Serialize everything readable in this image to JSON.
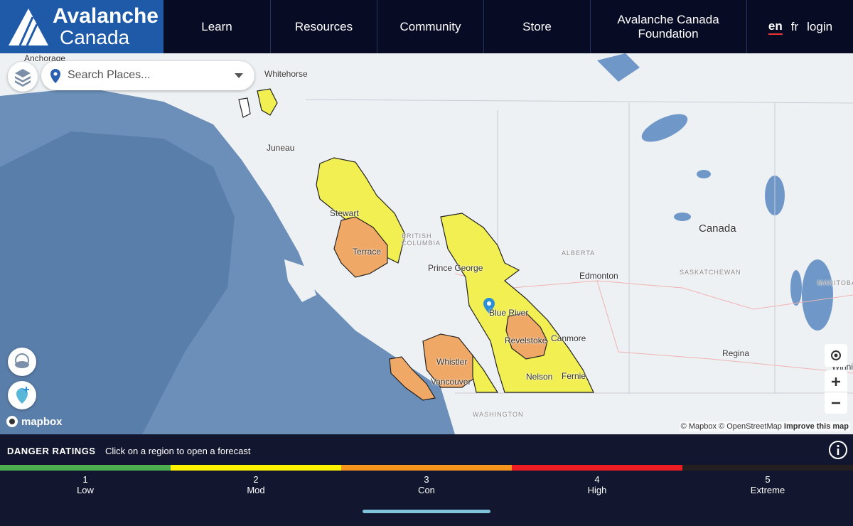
{
  "header": {
    "logo": [
      "Avalanche",
      "Canada"
    ],
    "nav": [
      "Learn",
      "Resources",
      "Community",
      "Store",
      "Avalanche Canada Foundation"
    ],
    "languages": [
      "en",
      "fr"
    ],
    "login": "login"
  },
  "map": {
    "search_placeholder": "Search Places...",
    "labels": [
      "Anchorage",
      "Whitehorse",
      "Juneau",
      "Stewart",
      "Terrace",
      "BRITISH COLUMBIA",
      "Prince George",
      "ALBERTA",
      "Edmonton",
      "Canada",
      "SASKATCHEWAN",
      "MANITOBA",
      "Blue River",
      "Revelstoke",
      "Canmore",
      "Whistler",
      "Vancouver",
      "Nelson",
      "Fernie",
      "Regina",
      "Winnip",
      "WASHINGTON"
    ],
    "brand": "mapbox",
    "attribution": [
      "© Mapbox",
      "© OpenStreetMap",
      "Improve this map"
    ]
  },
  "danger_ratings": {
    "title": "DANGER RATINGS",
    "hint": "Click on a region to open a forecast",
    "levels": [
      {
        "number": 1,
        "name": "Low",
        "color": "#4caf50"
      },
      {
        "number": 2,
        "name": "Mod",
        "color": "#fff200"
      },
      {
        "number": 3,
        "name": "Con",
        "color": "#f7941e"
      },
      {
        "number": 4,
        "name": "High",
        "color": "#ed1c24"
      },
      {
        "number": 5,
        "name": "Extreme",
        "color": "#231f20"
      }
    ]
  }
}
